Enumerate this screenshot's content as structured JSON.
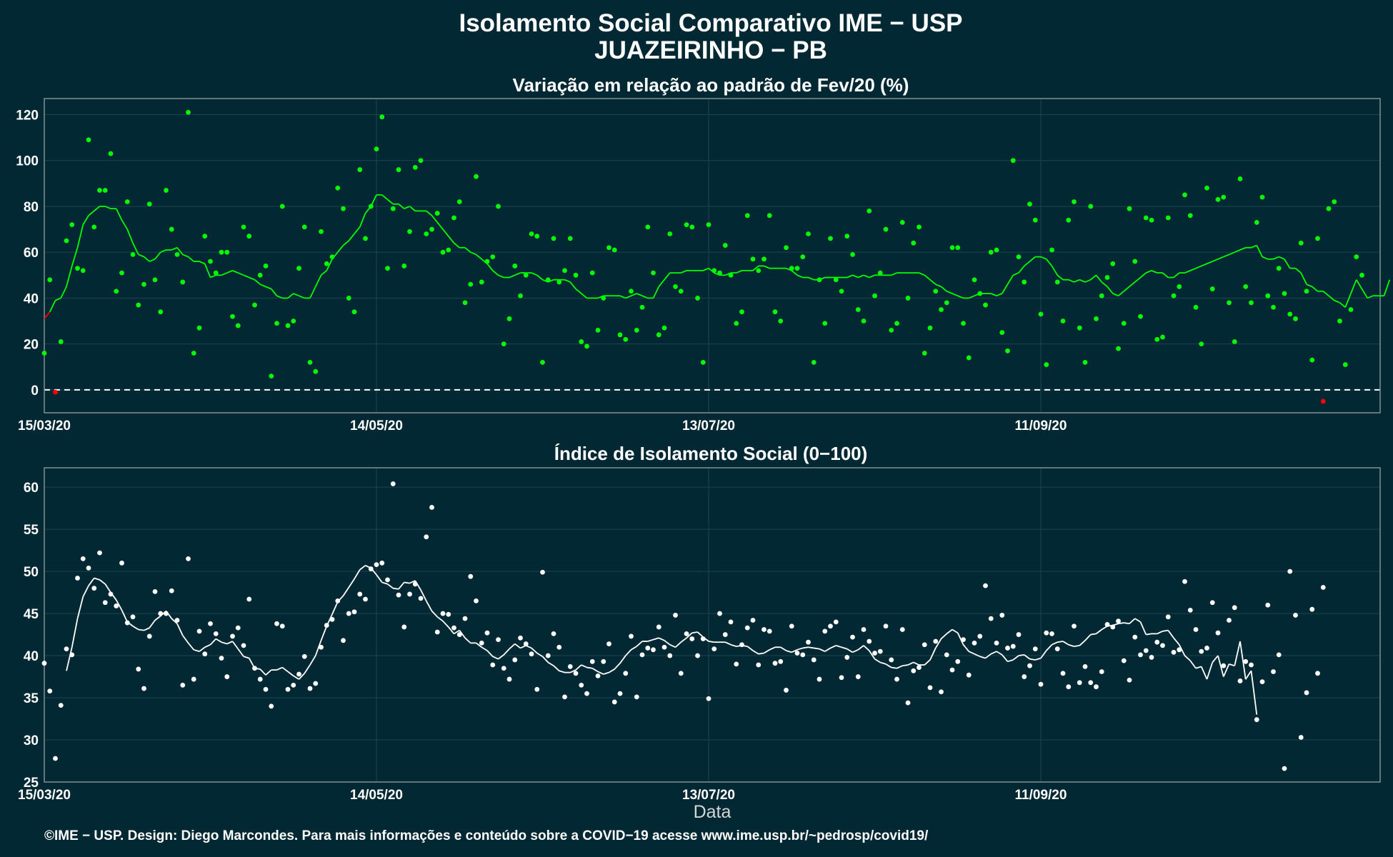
{
  "header": {
    "title": "Isolamento Social Comparativo IME − USP",
    "subtitle": "JUAZEIRINHO − PB"
  },
  "footer": {
    "credit": "©IME − USP. Design: Diego Marcondes. Para mais informações e conteúdo sobre a COVID−19 acesse www.ime.usp.br/~pedrosp/covid19/"
  },
  "colors": {
    "background": "#022833",
    "positive": "#00ff00",
    "negative": "#ff0000",
    "index": "#ffffff",
    "grid": "#1d4550",
    "frame": "#7f8f94"
  },
  "chart_data": [
    {
      "type": "scatter",
      "title": "Variação em relação ao padrão de Fev/20 (%)",
      "xlabel": "",
      "ylabel": "",
      "x_start": "15/03/20",
      "x_ticks": [
        {
          "day": 0,
          "label": "15/03/20"
        },
        {
          "day": 60,
          "label": "14/05/20"
        },
        {
          "day": 120,
          "label": "13/07/20"
        },
        {
          "day": 180,
          "label": "11/09/20"
        }
      ],
      "ylim": [
        -10,
        127
      ],
      "y_ticks": [
        0,
        20,
        40,
        60,
        80,
        100,
        120
      ],
      "reference_line": 0,
      "series": [
        {
          "kind": "points",
          "values": [
            16,
            48,
            -1,
            21,
            65,
            72,
            53,
            52,
            109,
            71,
            87,
            87,
            103,
            43,
            51,
            82,
            59,
            37,
            46,
            81,
            48,
            34,
            87,
            70,
            59,
            47,
            121,
            16,
            27,
            67,
            56,
            51,
            60,
            60,
            32,
            28,
            71,
            67,
            37,
            50,
            54,
            6,
            29,
            80,
            28,
            30,
            53,
            71,
            12,
            8,
            69,
            55,
            58,
            88,
            79,
            40,
            34,
            96,
            66,
            80,
            105,
            119,
            53,
            79,
            96,
            54,
            69,
            97,
            100,
            68,
            70,
            77,
            60,
            61,
            75,
            82,
            38,
            46,
            93,
            47,
            56,
            58,
            80,
            20,
            31,
            54,
            41,
            50,
            68,
            67,
            12,
            48,
            66,
            47,
            52,
            66,
            50,
            21,
            19,
            51,
            26,
            40,
            62,
            61,
            24,
            22,
            43,
            26,
            36,
            71,
            51,
            24,
            27,
            68,
            45,
            43,
            72,
            71,
            40,
            12,
            72,
            52,
            51,
            63,
            50,
            29,
            34,
            76,
            57,
            52,
            57,
            76,
            34,
            30,
            62,
            53,
            53,
            58,
            68,
            12,
            48,
            29,
            66,
            48,
            43,
            67,
            59,
            35,
            30,
            78,
            41,
            51,
            70,
            26,
            29,
            73,
            40,
            64,
            71,
            16,
            27,
            43,
            35,
            38,
            62,
            62,
            29,
            14,
            48,
            42,
            37,
            60,
            61,
            25,
            17,
            100,
            58,
            47,
            81,
            74,
            33,
            11,
            61,
            47,
            30,
            74,
            82,
            27,
            12,
            80,
            31,
            41,
            49,
            55,
            18,
            29,
            79,
            56,
            32,
            75,
            74,
            22,
            23,
            75,
            41,
            45,
            85,
            76,
            36,
            20,
            88,
            44,
            83,
            84,
            38,
            21,
            92,
            45,
            38,
            73,
            84,
            41,
            36,
            53,
            42,
            33,
            31,
            64,
            43,
            13,
            66,
            -5,
            79,
            82,
            30,
            11,
            35,
            58,
            50
          ]
        },
        {
          "kind": "moving-average",
          "values": [
            31,
            34,
            39,
            40,
            45,
            54,
            62,
            72,
            76,
            78,
            80,
            80,
            79,
            79,
            74,
            70,
            64,
            59,
            58,
            56,
            57,
            60,
            61,
            61,
            62,
            59,
            58,
            56,
            56,
            55,
            49,
            50,
            50,
            51,
            52,
            51,
            50,
            49,
            48,
            46,
            45,
            44,
            41,
            40,
            40,
            42,
            41,
            40,
            40,
            45,
            50,
            52,
            57,
            60,
            63,
            65,
            68,
            71,
            77,
            80,
            85,
            85,
            83,
            81,
            81,
            79,
            80,
            78,
            78,
            78,
            76,
            73,
            70,
            67,
            64,
            62,
            62,
            60,
            59,
            57,
            55,
            52,
            50,
            49,
            49,
            50,
            51,
            51,
            51,
            50,
            48,
            47,
            48,
            48,
            48,
            47,
            44,
            42,
            40,
            40,
            40,
            41,
            41,
            41,
            41,
            40,
            41,
            42,
            41,
            40,
            40,
            45,
            48,
            51,
            51,
            51,
            52,
            52,
            52,
            52,
            53,
            51,
            50,
            50,
            51,
            51,
            52,
            52,
            52,
            54,
            54,
            53,
            53,
            53,
            53,
            52,
            50,
            49,
            49,
            48,
            48,
            49,
            49,
            49,
            49,
            49,
            50,
            49,
            50,
            49,
            50,
            50,
            50,
            50,
            51,
            51,
            51,
            51,
            51,
            50,
            48,
            46,
            45,
            43,
            42,
            41,
            40,
            40,
            41,
            42,
            42,
            42,
            41,
            42,
            46,
            50,
            51,
            54,
            56,
            58,
            58,
            57,
            54,
            50,
            48,
            48,
            47,
            48,
            47,
            48,
            50,
            47,
            45,
            42,
            41,
            43,
            45,
            47,
            49,
            51,
            52,
            51,
            51,
            49,
            49,
            51,
            51,
            52,
            53,
            54,
            55,
            56,
            57,
            58,
            59,
            60,
            61,
            62,
            62,
            63,
            58,
            57,
            57,
            58,
            57,
            53,
            53,
            51,
            46,
            45,
            43,
            43,
            41,
            39,
            38,
            36,
            42,
            48,
            44,
            40,
            41,
            41,
            41,
            48
          ]
        }
      ]
    },
    {
      "type": "scatter",
      "title": "Índice de Isolamento Social (0−100)",
      "xlabel": "Data",
      "ylabel": "",
      "x_start": "15/03/20",
      "x_ticks": [
        {
          "day": 0,
          "label": "15/03/20"
        },
        {
          "day": 60,
          "label": "14/05/20"
        },
        {
          "day": 120,
          "label": "13/07/20"
        },
        {
          "day": 180,
          "label": "11/09/20"
        }
      ],
      "ylim": [
        25,
        62.3
      ],
      "y_ticks": [
        25,
        30,
        35,
        40,
        45,
        50,
        55,
        60
      ],
      "series": [
        {
          "kind": "points",
          "values": [
            39.1,
            35.8,
            27.8,
            34.1,
            40.8,
            40.1,
            49.2,
            51.5,
            50.4,
            48,
            52.2,
            46.3,
            47.3,
            45.9,
            51,
            43.9,
            44.6,
            38.4,
            36.1,
            42.3,
            47.6,
            45,
            45,
            47.7,
            44.2,
            36.5,
            51.5,
            37.2,
            42.9,
            40.2,
            43.8,
            42.6,
            39.7,
            37.5,
            42.3,
            43.3,
            41.2,
            46.7,
            38.5,
            37.2,
            36,
            34,
            43.8,
            43.5,
            36,
            36.5,
            37.8,
            39.9,
            36.1,
            36.7,
            41,
            43.6,
            44.3,
            46.5,
            41.8,
            45,
            45.2,
            47.3,
            46.7,
            50.3,
            50.8,
            51,
            49,
            60.4,
            47.2,
            43.4,
            47.3,
            48.5,
            46.8,
            54.1,
            57.6,
            42.8,
            45,
            44.9,
            43.3,
            42.5,
            44.4,
            49.4,
            46.5,
            41.5,
            42.7,
            38.9,
            41.9,
            38.5,
            37.2,
            39.5,
            42.1,
            41.4,
            40.2,
            36,
            49.9,
            40,
            42.6,
            41,
            35.1,
            38.7,
            37.9,
            36.5,
            35.5,
            39.3,
            37.6,
            39.3,
            41.4,
            34.5,
            35.5,
            37.9,
            42.3,
            35.1,
            40.1,
            40.9,
            40.7,
            43.4,
            41,
            40,
            44.8,
            37.9,
            42.6,
            42,
            40,
            42,
            34.9,
            40.8,
            45,
            42.5,
            44,
            39,
            41.3,
            43.3,
            44.2,
            38.9,
            43.1,
            42.9,
            39.1,
            39.3,
            35.9,
            43.5,
            40.3,
            40.1,
            41.6,
            39.5,
            37.2,
            42.9,
            43.5,
            44,
            37.4,
            39.8,
            42.2,
            37.5,
            43.1,
            41.7,
            40.3,
            40.5,
            43.5,
            39.5,
            37.2,
            43.1,
            34.4,
            38.2,
            38.6,
            41.3,
            36.2,
            41.7,
            35.7,
            40.1,
            38.3,
            39.3,
            41.9,
            37.7,
            41.5,
            42.3,
            48.3,
            44.4,
            41.5,
            44.8,
            40.9,
            41.1,
            42.5,
            37.5,
            38.8,
            40.8,
            36.6,
            42.7,
            42.6,
            40.8,
            37.9,
            36.3,
            43.5,
            36.8,
            38.7,
            36.8,
            36.3,
            38.1,
            43.7,
            43.4,
            44.1,
            39.4,
            37.1,
            42.2,
            40.1,
            40.6,
            39.8,
            41.6,
            41.2,
            44.6,
            40.4,
            40.7,
            48.8,
            45.4,
            43.1,
            40.5,
            40.9,
            46.3,
            42.7,
            38.8,
            44.2,
            45.7,
            37,
            39.3,
            38.9,
            32.4,
            36.9,
            46,
            38.1,
            40.1,
            26.6,
            50,
            44.8,
            30.3,
            35.6,
            45.5,
            37.9,
            48.1
          ]
        },
        {
          "kind": "moving-average",
          "values": [
            null,
            null,
            null,
            null,
            38.2,
            41,
            44.4,
            47,
            48.3,
            49.2,
            49,
            48.5,
            47.5,
            46.6,
            45.4,
            44,
            43.5,
            43.1,
            43,
            43.3,
            44.2,
            44.7,
            45.3,
            44.4,
            43.8,
            42.4,
            41.5,
            40.7,
            40.5,
            41,
            41.3,
            42,
            41.6,
            41.4,
            41.7,
            40.8,
            39.9,
            39.7,
            38.5,
            38.4,
            37.7,
            38.3,
            38.3,
            38.6,
            38.1,
            37.6,
            37.2,
            37.9,
            38.9,
            40,
            41.8,
            43.5,
            44.9,
            46.4,
            47.1,
            48.1,
            49.1,
            50.2,
            50.7,
            50.4,
            49.6,
            48.7,
            48.5,
            48,
            47.9,
            48.7,
            48.6,
            48.9,
            47.8,
            46.5,
            45.3,
            44.6,
            44.1,
            43.4,
            42.6,
            43,
            42.1,
            41.5,
            41.5,
            41,
            40.6,
            39.9,
            39.6,
            40.1,
            40.8,
            41.4,
            40.9,
            41.2,
            40.9,
            40.3,
            39.9,
            39.2,
            38.8,
            38.2,
            38,
            38,
            38.3,
            38.9,
            38.6,
            38.5,
            38.1,
            37.8,
            38,
            38.4,
            39.1,
            40,
            40.7,
            41.1,
            41.7,
            41.7,
            41.9,
            42.1,
            41.8,
            41.3,
            41,
            41.6,
            42.1,
            42.7,
            42.8,
            42.2,
            41.7,
            41.6,
            41.6,
            41.6,
            41.3,
            41.1,
            41.2,
            41.1,
            40.6,
            40.2,
            40.3,
            40.7,
            41,
            41,
            40.6,
            40.4,
            40.7,
            40.9,
            41,
            40.9,
            40.8,
            40.5,
            40.9,
            41.2,
            41,
            40.8,
            40.4,
            40.7,
            41.2,
            40.6,
            39.6,
            39.2,
            39,
            38.6,
            38.5,
            38.8,
            38.9,
            39.2,
            38.9,
            38.9,
            39.5,
            40.9,
            42,
            42.6,
            43.1,
            42.7,
            41.3,
            40.5,
            40.2,
            39.9,
            39.7,
            40.2,
            40.5,
            40.1,
            39.3,
            39.5,
            40,
            40.1,
            39.6,
            39.5,
            39.7,
            40.6,
            41.3,
            41.6,
            41.7,
            41.3,
            41.1,
            41.2,
            41.8,
            42.5,
            42.6,
            43.1,
            43.5,
            43.6,
            43.8,
            43.9,
            43.8,
            44.4,
            44,
            42.5,
            42.6,
            42.6,
            42.9,
            43,
            42.1,
            41.3,
            40,
            39.4,
            38.5,
            38.7,
            37.2,
            39.2,
            40,
            37.5,
            39,
            38.8,
            41.7,
            37.2,
            38.2,
            33
          ]
        }
      ]
    }
  ]
}
